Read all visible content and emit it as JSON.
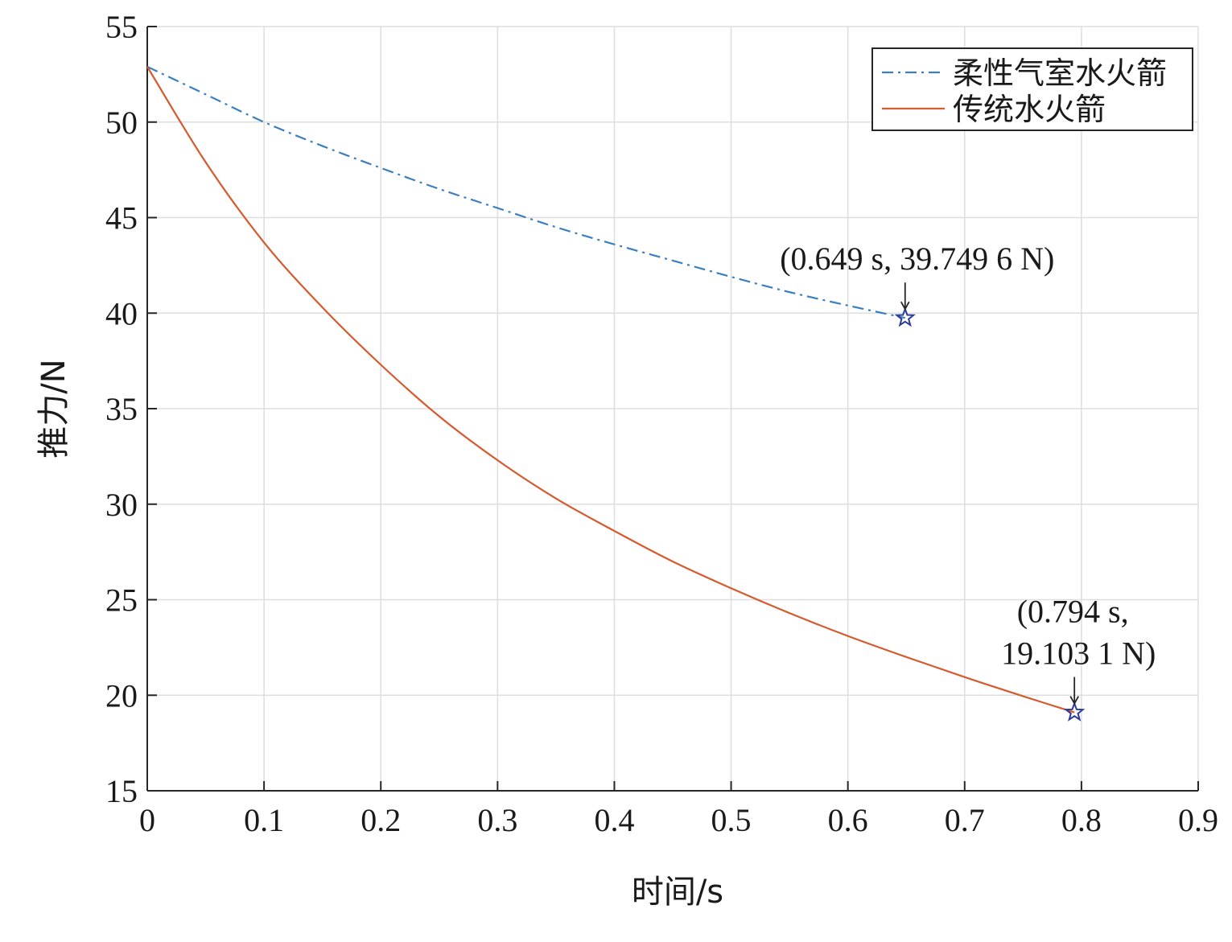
{
  "chart_data": {
    "type": "line",
    "xlabel": "时间/s",
    "ylabel": "推力/N",
    "xlim": [
      0,
      0.9
    ],
    "ylim": [
      15,
      55
    ],
    "xticks": [
      0,
      0.1,
      0.2,
      0.3,
      0.4,
      0.5,
      0.6,
      0.7,
      0.8,
      0.9
    ],
    "xtick_labels": [
      "0",
      "0.1",
      "0.2",
      "0.3",
      "0.4",
      "0.5",
      "0.6",
      "0.7",
      "0.8",
      "0.9"
    ],
    "yticks": [
      15,
      20,
      25,
      30,
      35,
      40,
      45,
      50,
      55
    ],
    "ytick_labels": [
      "15",
      "20",
      "25",
      "30",
      "35",
      "40",
      "45",
      "50",
      "55"
    ],
    "grid": true,
    "legend_position": "top-right",
    "series": [
      {
        "name": "柔性气室水火箭",
        "color": "#3a7fc0",
        "line_style": "dash-dot",
        "x": [
          0,
          0.05,
          0.1,
          0.15,
          0.2,
          0.25,
          0.3,
          0.35,
          0.4,
          0.45,
          0.5,
          0.55,
          0.6,
          0.649
        ],
        "y": [
          52.9,
          51.45,
          50.0,
          48.75,
          47.6,
          46.5,
          45.5,
          44.5,
          43.6,
          42.75,
          41.9,
          41.1,
          40.4,
          39.7496
        ]
      },
      {
        "name": "传统水火箭",
        "color": "#d65a2e",
        "line_style": "solid",
        "x": [
          0,
          0.05,
          0.1,
          0.15,
          0.2,
          0.25,
          0.3,
          0.35,
          0.4,
          0.45,
          0.5,
          0.55,
          0.6,
          0.65,
          0.7,
          0.75,
          0.794
        ],
        "y": [
          52.9,
          47.9,
          43.7,
          40.3,
          37.3,
          34.6,
          32.3,
          30.3,
          28.6,
          27.0,
          25.6,
          24.3,
          23.1,
          22.0,
          20.95,
          19.95,
          19.1031
        ]
      }
    ],
    "annotations": [
      {
        "series": 0,
        "x": 0.649,
        "y": 39.7496,
        "lines": [
          "(0.649 s, 39.749 6 N)"
        ],
        "marker": "star",
        "marker_color": "#2a3a9a"
      },
      {
        "series": 1,
        "x": 0.794,
        "y": 19.1031,
        "lines": [
          "(0.794 s,",
          "19.103 1 N)"
        ],
        "marker": "star",
        "marker_color": "#2a3a9a"
      }
    ]
  }
}
